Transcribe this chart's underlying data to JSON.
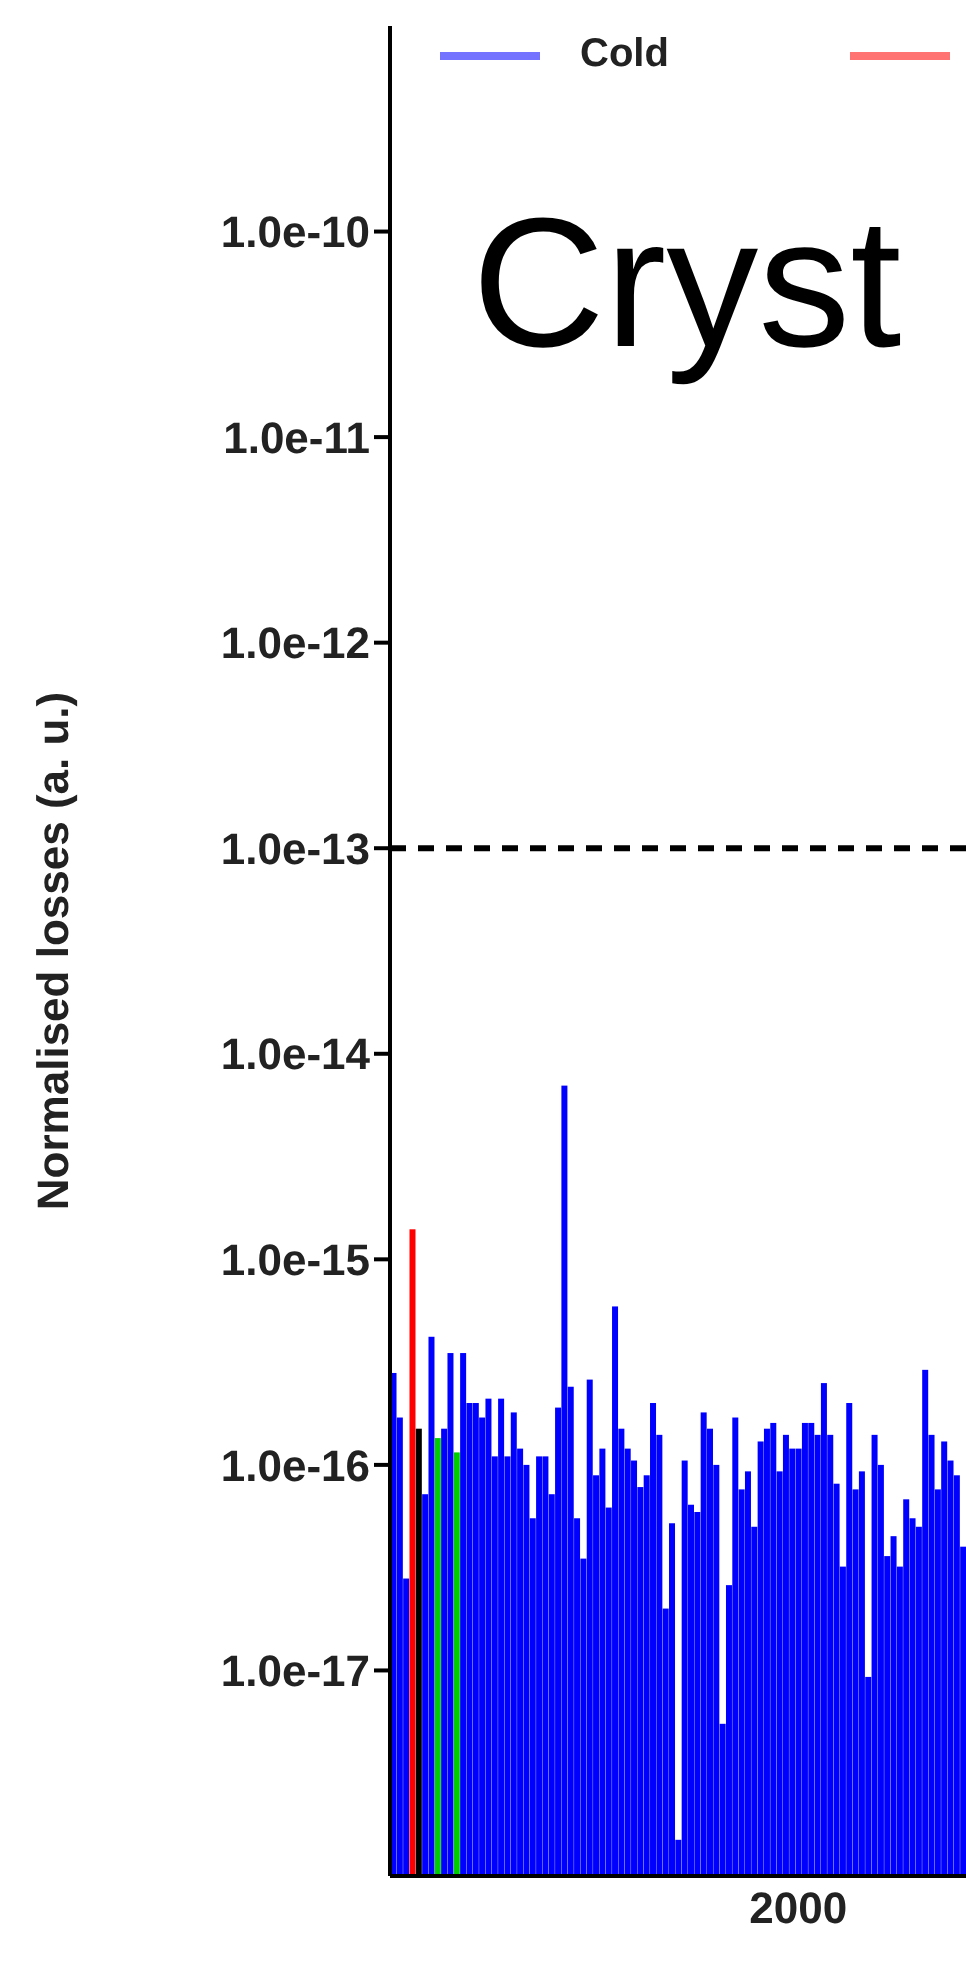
{
  "chart_data": {
    "type": "bar",
    "title": "Cryst",
    "ylabel": "Normalised losses (a. u.)",
    "log": true,
    "legend": "top",
    "grid": false,
    "categories": [
      null,
      null,
      null,
      null,
      null,
      null,
      null,
      null,
      null,
      null,
      null,
      null,
      null,
      null,
      null,
      null,
      null,
      null,
      null,
      null,
      null,
      null,
      null,
      null,
      null,
      null,
      null,
      null,
      null,
      null,
      null,
      null,
      null,
      null,
      null,
      null,
      null,
      null,
      null,
      null,
      null,
      null,
      null,
      null,
      null,
      null,
      null,
      null,
      null,
      null,
      null,
      null,
      null,
      null,
      null,
      null,
      null,
      null,
      null,
      null,
      null,
      null,
      null,
      null,
      "2000",
      null,
      null,
      null,
      null,
      null,
      null,
      null,
      null,
      null,
      null,
      null,
      null,
      null,
      null,
      null,
      null,
      null,
      null,
      null,
      null,
      null,
      null,
      null,
      null,
      null,
      null
    ],
    "ylim": [
      1e-18,
      1e-09
    ],
    "yticks": [
      {
        "value": 1e-10,
        "label": "1.0e-10"
      },
      {
        "value": 1e-11,
        "label": "1.0e-11"
      },
      {
        "value": 1e-12,
        "label": "1.0e-12"
      },
      {
        "value": 1e-13,
        "label": "1.0e-13"
      },
      {
        "value": 1e-14,
        "label": "1.0e-14"
      },
      {
        "value": 1e-15,
        "label": "1.0e-15"
      },
      {
        "value": 1e-16,
        "label": "1.0e-16"
      },
      {
        "value": 1e-17,
        "label": "1.0e-17"
      }
    ],
    "ref_lines": [
      {
        "axis": "y",
        "value": 1e-13,
        "color": "#000000",
        "line_style": "dashed"
      }
    ],
    "series": [
      {
        "name": "Cold",
        "color": "#0000ff",
        "values": [
          2.8e-16,
          1.7e-16,
          2.8e-17,
          null,
          null,
          7.2e-17,
          4.2e-16,
          null,
          1.5e-16,
          3.5e-16,
          null,
          3.5e-16,
          2e-16,
          2e-16,
          1.7e-16,
          2.1e-16,
          1.1e-16,
          2.1e-16,
          1.1e-16,
          1.8e-16,
          1.2e-16,
          1e-16,
          5.5e-17,
          1.1e-16,
          1.1e-16,
          7.2e-17,
          1.9e-16,
          7e-15,
          2.4e-16,
          5.5e-17,
          3.5e-17,
          2.6e-16,
          8.9e-17,
          1.2e-16,
          6.2e-17,
          5.9e-16,
          1.5e-16,
          1.2e-16,
          1.05e-16,
          7.8e-17,
          8.9e-17,
          2e-16,
          1.4e-16,
          2e-17,
          5.2e-17,
          1.5e-18,
          1.05e-16,
          6.4e-17,
          5.9e-17,
          1.8e-16,
          1.5e-16,
          1e-16,
          5.5e-18,
          2.6e-17,
          1.7e-16,
          7.6e-17,
          9.3e-17,
          5e-17,
          1.3e-16,
          1.5e-16,
          1.6e-16,
          9.3e-17,
          1.4e-16,
          1.2e-16,
          1.2e-16,
          1.6e-16,
          1.6e-16,
          1.4e-16,
          2.5e-16,
          1.4e-16,
          8.1e-17,
          3.2e-17,
          2e-16,
          7.6e-17,
          9.3e-17,
          9.3e-18,
          1.4e-16,
          1e-16,
          3.6e-17,
          4.5e-17,
          3.2e-17,
          6.8e-17,
          5.5e-17,
          5e-17,
          2.9e-16,
          1.4e-16,
          7.6e-17,
          1.3e-16,
          1.05e-16,
          8.9e-17,
          4e-17
        ]
      },
      {
        "color": "#ff0000",
        "values": [
          null,
          null,
          null,
          1.4e-15,
          null,
          null,
          null,
          null,
          null,
          null,
          null,
          null,
          null,
          null,
          null,
          null,
          null,
          null,
          null,
          null,
          null,
          null,
          null,
          null,
          null,
          null,
          null,
          null,
          null,
          null,
          null,
          null,
          null,
          null,
          null,
          null,
          null,
          null,
          null,
          null,
          null,
          null,
          null,
          null,
          null,
          null,
          null,
          null,
          null,
          null,
          null,
          null,
          null,
          null,
          null,
          null,
          null,
          null,
          null,
          null,
          null,
          null,
          null,
          null,
          null,
          null,
          null,
          null,
          null,
          null,
          null,
          null,
          null,
          null,
          null,
          null,
          null,
          null,
          null,
          null,
          null,
          null,
          null,
          null,
          null,
          null,
          null,
          null,
          null,
          null,
          null
        ]
      },
      {
        "color": "#000000",
        "values": [
          null,
          null,
          null,
          null,
          1.5e-16,
          null,
          null,
          null,
          null,
          null,
          null,
          null,
          null,
          null,
          null,
          null,
          null,
          null,
          null,
          null,
          null,
          null,
          null,
          null,
          null,
          null,
          null,
          null,
          null,
          null,
          null,
          null,
          null,
          null,
          null,
          null,
          null,
          null,
          null,
          null,
          null,
          null,
          null,
          null,
          null,
          null,
          null,
          null,
          null,
          null,
          null,
          null,
          null,
          null,
          null,
          null,
          null,
          null,
          null,
          null,
          null,
          null,
          null,
          null,
          null,
          null,
          null,
          null,
          null,
          null,
          null,
          null,
          null,
          null,
          null,
          null,
          null,
          null,
          null,
          null,
          null,
          null,
          null,
          null,
          null,
          null,
          null,
          null,
          null,
          null,
          null
        ]
      },
      {
        "color": "#00cc00",
        "values": [
          null,
          null,
          null,
          null,
          null,
          null,
          null,
          1.35e-16,
          null,
          null,
          1.15e-16,
          null,
          null,
          null,
          null,
          null,
          null,
          null,
          null,
          null,
          null,
          null,
          null,
          null,
          null,
          null,
          null,
          null,
          null,
          null,
          null,
          null,
          null,
          null,
          null,
          null,
          null,
          null,
          null,
          null,
          null,
          null,
          null,
          null,
          null,
          null,
          null,
          null,
          null,
          null,
          null,
          null,
          null,
          null,
          null,
          null,
          null,
          null,
          null,
          null,
          null,
          null,
          null,
          null,
          null,
          null,
          null,
          null,
          null,
          null,
          null,
          null,
          null,
          null,
          null,
          null,
          null,
          null,
          null,
          null,
          null,
          null,
          null,
          null,
          null,
          null,
          null,
          null,
          null,
          null,
          null
        ]
      }
    ]
  }
}
